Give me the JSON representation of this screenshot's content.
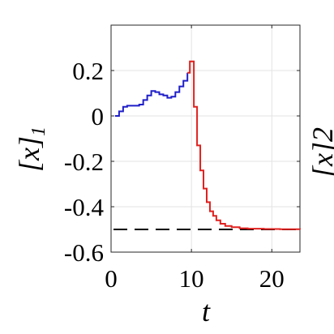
{
  "chart_data": {
    "type": "line",
    "xlabel": "t",
    "ylabel": {
      "main": "[x]",
      "sub": "1"
    },
    "xlim": [
      0,
      23.5
    ],
    "ylim": [
      -0.6,
      0.4
    ],
    "x_ticks": [
      0,
      10,
      20
    ],
    "x_tick_labels": [
      "0",
      "10",
      "20"
    ],
    "y_ticks": [
      0.2,
      0,
      -0.2,
      -0.4,
      -0.6
    ],
    "y_tick_labels": [
      "0.2",
      "0",
      "-0.2",
      "-0.4",
      "-0.6"
    ],
    "grid": true,
    "reference_line": {
      "y": -0.5,
      "style": "dashed",
      "color": "#000000"
    },
    "series": [
      {
        "color": "#1f1fc8",
        "style": "step",
        "points": [
          [
            0.5,
            0.0
          ],
          [
            1.0,
            0.02
          ],
          [
            1.5,
            0.04
          ],
          [
            2.0,
            0.045
          ],
          [
            3.0,
            0.045
          ],
          [
            3.5,
            0.05
          ],
          [
            4.0,
            0.07
          ],
          [
            4.5,
            0.09
          ],
          [
            5.0,
            0.11
          ],
          [
            5.5,
            0.105
          ],
          [
            6.0,
            0.095
          ],
          [
            6.5,
            0.09
          ],
          [
            7.0,
            0.08
          ],
          [
            7.5,
            0.085
          ],
          [
            8.0,
            0.105
          ],
          [
            8.5,
            0.13
          ],
          [
            9.0,
            0.155
          ],
          [
            9.5,
            0.19
          ]
        ]
      },
      {
        "color": "#e0201e",
        "style": "step",
        "points": [
          [
            9.5,
            0.19
          ],
          [
            9.8,
            0.24
          ],
          [
            10.3,
            0.04
          ],
          [
            10.7,
            -0.13
          ],
          [
            11.1,
            -0.24
          ],
          [
            11.5,
            -0.32
          ],
          [
            11.9,
            -0.38
          ],
          [
            12.3,
            -0.42
          ],
          [
            12.7,
            -0.44
          ],
          [
            13.1,
            -0.46
          ],
          [
            13.6,
            -0.475
          ],
          [
            14.2,
            -0.485
          ],
          [
            15.0,
            -0.49
          ],
          [
            16.0,
            -0.495
          ],
          [
            17.0,
            -0.497
          ],
          [
            19.0,
            -0.498
          ],
          [
            21.0,
            -0.499
          ],
          [
            23.5,
            -0.5
          ]
        ]
      }
    ]
  },
  "right_cut_label": "[x]2"
}
